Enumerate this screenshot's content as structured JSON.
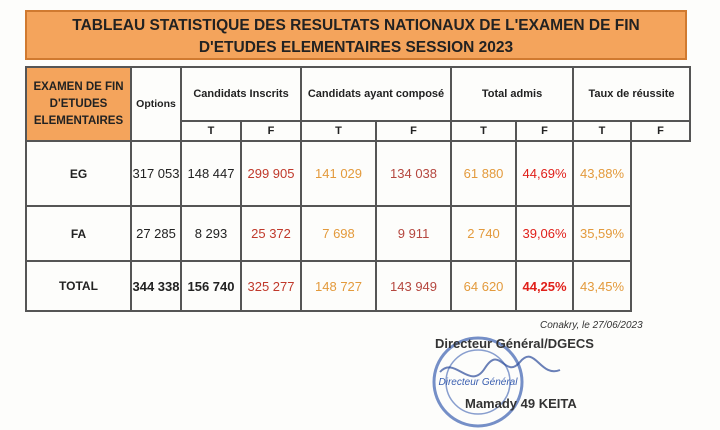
{
  "header": {
    "title_lines": [
      "TABLEAU STATISTIQUE DES RESULTATS NATIONAUX  DE L'EXAMEN DE FIN",
      "D'ETUDES ELEMENTAIRES SESSION 2023"
    ]
  },
  "table": {
    "section": "EXAMEN DE FIN D'ETUDES ELEMENTAIRES",
    "columns": [
      "Options",
      "Candidats Inscrits",
      "Candidats ayant composé",
      "Total admis",
      "Taux de réussite"
    ],
    "subcolumns": [
      "T",
      "F",
      "T",
      "F",
      "T",
      "F",
      "T",
      "F"
    ],
    "rows": [
      [
        "EG",
        "317 053",
        "148 447",
        "299 905",
        "141 029",
        "134 038",
        "61 880",
        "44,69%",
        "43,88%"
      ],
      [
        "FA",
        "27 285",
        "8 293",
        "25 372",
        "7 698",
        "9 911",
        "2 740",
        "39,06%",
        "35,59%"
      ],
      [
        "TOTAL",
        "344 338",
        "156 740",
        "325 277",
        "148 727",
        "143 949",
        "64 620",
        "44,25%",
        "43,45%"
      ]
    ]
  },
  "footer": {
    "place_date": "Conakry, le 27/06/2023",
    "role": "Directeur Général/DGECS",
    "stamp": "Directeur Général",
    "signatory": "Mamady 49 KEITA"
  }
}
